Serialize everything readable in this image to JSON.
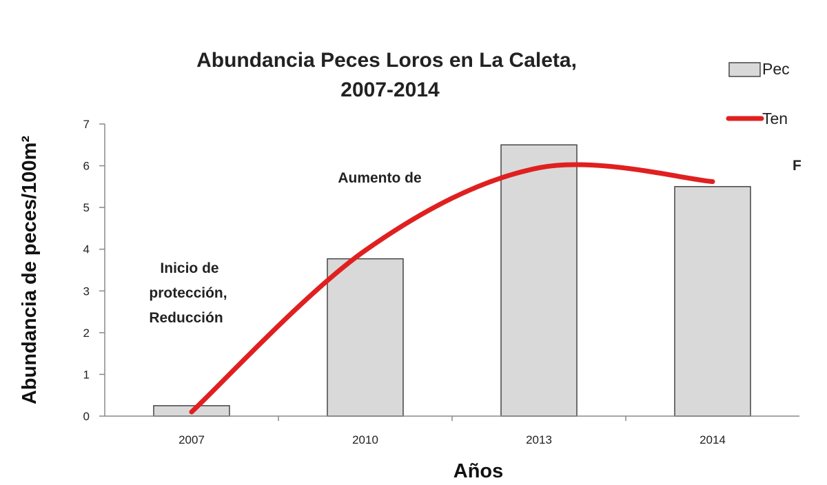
{
  "chart_data": {
    "type": "bar",
    "title_lines": [
      "Abundancia  Peces Loros  en La Caleta,",
      "2007-2014"
    ],
    "xlabel": "Años",
    "ylabel": "Abundancia de peces/100m²",
    "categories": [
      "2007",
      "2010",
      "2013",
      "2014"
    ],
    "series": [
      {
        "name": "Pec",
        "type": "bar",
        "values": [
          0.25,
          3.77,
          6.5,
          5.5
        ],
        "color": "#d9d9d9",
        "stroke": "#444444"
      },
      {
        "name": "Ten",
        "type": "line",
        "values": [
          0.1,
          3.97,
          5.95,
          5.62
        ],
        "color": "#e02020"
      }
    ],
    "ylim": [
      0,
      7
    ],
    "yticks": [
      "0",
      "1",
      "2",
      "3",
      "4",
      "5",
      "6",
      "7"
    ],
    "grid": false,
    "legend": "top-right",
    "annotations": {
      "inicio": [
        "Inicio de",
        "protección,",
        "Reducción"
      ],
      "aumento": "Aumento de",
      "cut_letter": "F"
    }
  }
}
